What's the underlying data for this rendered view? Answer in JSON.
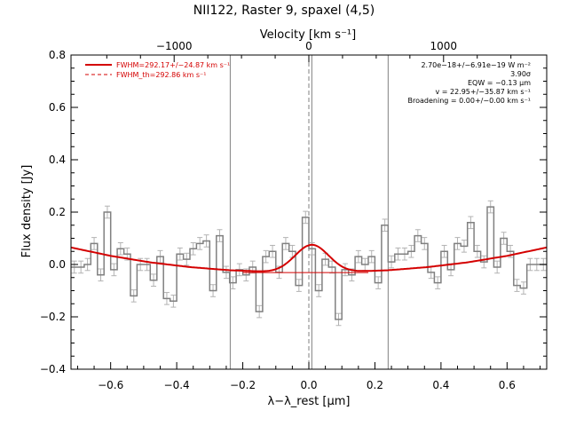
{
  "title": "NII122, Raster 9, spaxel (4,5)",
  "top_axis": {
    "label": "Velocity [km s⁻¹]",
    "ticks": [
      {
        "value": -1000,
        "label": "−1000"
      },
      {
        "value": 0,
        "label": "0"
      },
      {
        "value": 1000,
        "label": "1000"
      }
    ],
    "micron_per_kms": 0.00040778
  },
  "annotations_left": [
    {
      "text": "FWHM=292.17+/−24.87 km s⁻¹",
      "style": "solid",
      "color": "#d40000"
    },
    {
      "text": "FWHM_th=292.86 km s⁻¹",
      "style": "dashed",
      "color": "#d40000"
    }
  ],
  "annotations_right": [
    "2.70e−18+/−6.91e−19 W m⁻²",
    "3.90σ",
    "EQW = −0.13 μm",
    "v = 22.95+/−35.87 km s⁻¹",
    "Broadening = 0.00+/−0.00 km s⁻¹"
  ],
  "colors": {
    "data": "#808080",
    "fit": "#d40000",
    "axes": "#000000"
  },
  "chart_data": {
    "type": "line",
    "title": "NII122, Raster 9, spaxel (4,5)",
    "xlabel": "λ−λ_rest [μm]",
    "ylabel": "Flux density [Jy]",
    "xlim": [
      -0.72,
      0.72
    ],
    "ylim": [
      -0.4,
      0.8
    ],
    "xticks": [
      -0.6,
      -0.4,
      -0.2,
      0.0,
      0.2,
      0.4,
      0.6
    ],
    "xtick_labels": [
      "−0.6",
      "−0.4",
      "−0.2",
      "0.0",
      "0.2",
      "0.4",
      "0.6"
    ],
    "yticks": [
      -0.4,
      -0.2,
      0.0,
      0.2,
      0.4,
      0.6,
      0.8
    ],
    "ytick_labels": [
      "−0.4",
      "−0.2",
      "0.0",
      "0.2",
      "0.4",
      "0.6",
      "0.8"
    ],
    "vertical_lines": [
      {
        "x": -0.238,
        "style": "solid",
        "color": "#808080"
      },
      {
        "x": 0.0,
        "style": "dashed",
        "color": "#808080"
      },
      {
        "x": 0.009,
        "style": "solid",
        "color": "#808080"
      },
      {
        "x": 0.24,
        "style": "solid",
        "color": "#808080"
      }
    ],
    "series": [
      {
        "type": "step",
        "color": "#808080",
        "error_bar": 0.023,
        "x": [
          -0.72,
          -0.7,
          -0.68,
          -0.66,
          -0.64,
          -0.62,
          -0.6,
          -0.58,
          -0.56,
          -0.54,
          -0.52,
          -0.5,
          -0.48,
          -0.46,
          -0.44,
          -0.42,
          -0.4,
          -0.38,
          -0.36,
          -0.34,
          -0.32,
          -0.3,
          -0.28,
          -0.26,
          -0.24,
          -0.22,
          -0.2,
          -0.18,
          -0.16,
          -0.14,
          -0.12,
          -0.1,
          -0.08,
          -0.06,
          -0.04,
          -0.02,
          0.0,
          0.02,
          0.04,
          0.06,
          0.08,
          0.1,
          0.12,
          0.14,
          0.16,
          0.18,
          0.2,
          0.22,
          0.24,
          0.26,
          0.28,
          0.3,
          0.32,
          0.34,
          0.36,
          0.38,
          0.4,
          0.42,
          0.44,
          0.46,
          0.48,
          0.5,
          0.52,
          0.54,
          0.56,
          0.58,
          0.6,
          0.62,
          0.64,
          0.66,
          0.68,
          0.7
        ],
        "y": [
          -0.01,
          -0.01,
          0.0,
          0.08,
          -0.04,
          0.2,
          -0.02,
          0.06,
          0.04,
          -0.12,
          0.0,
          0.0,
          -0.06,
          0.03,
          -0.13,
          -0.14,
          0.04,
          0.02,
          0.06,
          0.08,
          0.09,
          -0.1,
          0.11,
          -0.03,
          -0.07,
          -0.02,
          -0.04,
          -0.01,
          -0.18,
          0.03,
          0.05,
          -0.03,
          0.08,
          0.05,
          -0.08,
          0.18,
          0.06,
          -0.1,
          0.02,
          -0.01,
          -0.21,
          -0.02,
          -0.04,
          0.03,
          0.0,
          0.03,
          -0.07,
          0.15,
          0.01,
          0.04,
          0.04,
          0.05,
          0.11,
          0.08,
          -0.03,
          -0.07,
          0.05,
          -0.02,
          0.08,
          0.07,
          0.16,
          0.05,
          0.01,
          0.22,
          -0.01,
          0.1,
          0.05,
          -0.08,
          -0.09,
          0.0,
          0.0,
          0.0
        ]
      },
      {
        "name": "FWHM=292.17+/−24.87 km s⁻¹",
        "type": "fit",
        "color": "#d40000",
        "baseline": {
          "x": [
            -0.72,
            -0.6,
            -0.48,
            -0.36,
            -0.24,
            -0.12,
            0.0,
            0.12,
            0.24,
            0.36,
            0.48,
            0.6,
            0.72
          ],
          "y": [
            0.065,
            0.033,
            0.008,
            -0.01,
            -0.022,
            -0.028,
            -0.03,
            -0.028,
            -0.022,
            -0.01,
            0.008,
            0.033,
            0.065
          ]
        },
        "gaussian": {
          "center": 0.009,
          "sigma": 0.0506,
          "amplitude": 0.105
        }
      },
      {
        "name": "FWHM_th=292.86 km s⁻¹",
        "type": "line",
        "color": "#d40000",
        "x": [
          -0.2,
          0.18
        ],
        "y": [
          -0.031,
          -0.031
        ]
      }
    ]
  }
}
